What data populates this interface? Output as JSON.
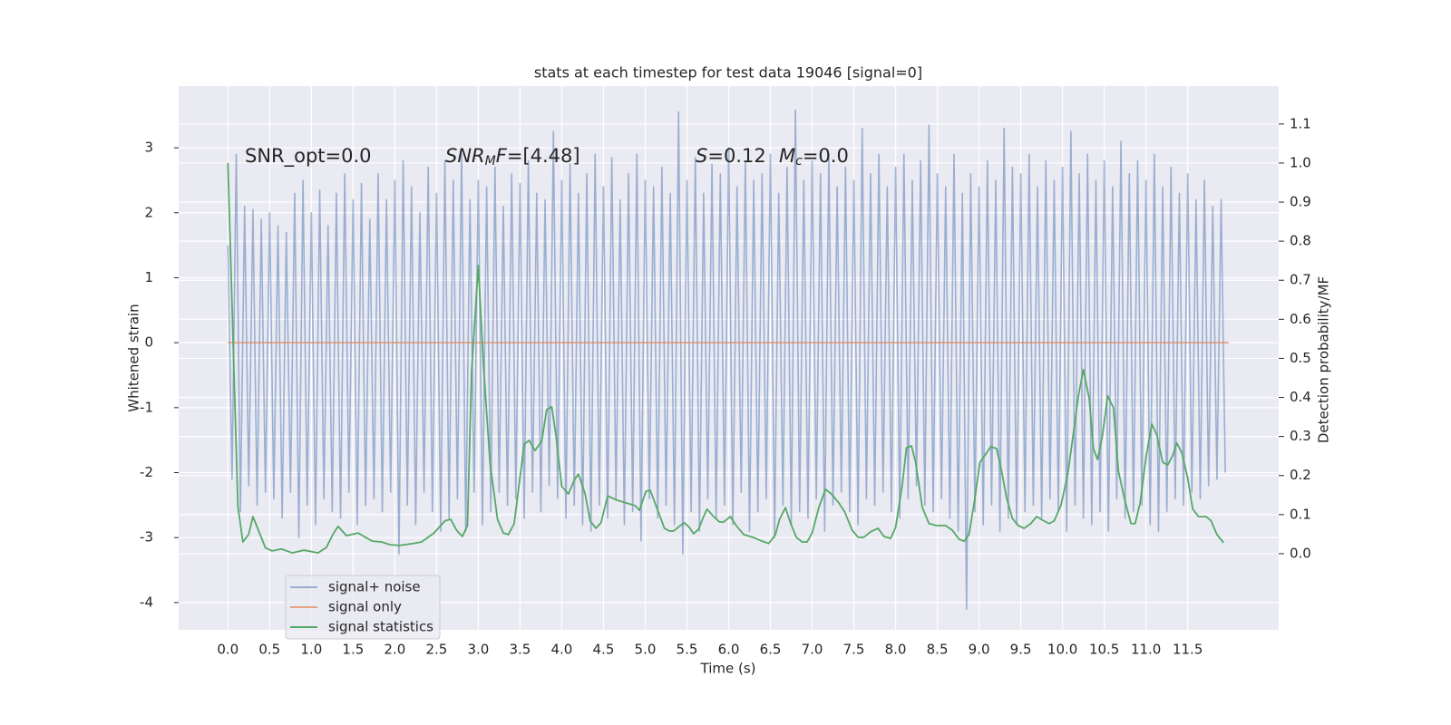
{
  "chart_data": {
    "type": "line",
    "title": "stats at each timestep for test data 19046 [signal=0]",
    "xlabel": "Time (s)",
    "ylabel": "Whitened strain",
    "y2label": "Detection probability/MF",
    "xlim": [
      -0.59,
      12.59
    ],
    "ylim": [
      -4.42,
      3.95
    ],
    "y2lim": [
      -0.195,
      1.197
    ],
    "xticks": [
      {
        "value": 0,
        "label": "0.0"
      },
      0.5,
      {
        "value": 1,
        "label": "1.0"
      },
      1.5,
      {
        "value": 2,
        "label": "2.0"
      },
      2.5,
      {
        "value": 3,
        "label": "3.0"
      },
      3.5,
      {
        "value": 4,
        "label": "4.0"
      },
      4.5,
      {
        "value": 5,
        "label": "5.0"
      },
      5.5,
      {
        "value": 6,
        "label": "6.0"
      },
      6.5,
      {
        "value": 7,
        "label": "7.0"
      },
      7.5,
      {
        "value": 8,
        "label": "8.0"
      },
      8.5,
      {
        "value": 9,
        "label": "9.0"
      },
      9.5,
      {
        "value": 10,
        "label": "10.0"
      },
      10.5,
      {
        "value": 11,
        "label": "11.0"
      },
      11.5
    ],
    "yticks": [
      -4,
      -3,
      -2,
      -1,
      0,
      1,
      2,
      3
    ],
    "y2ticks": [
      {
        "value": 0,
        "label": "0.0"
      },
      0.1,
      0.2,
      0.3,
      0.4,
      0.5,
      0.6,
      0.7,
      0.8,
      0.9,
      {
        "value": 1,
        "label": "1.0"
      },
      1.1
    ],
    "grid": true,
    "annotations": [
      [
        {
          "text": "SNR_opt=0.0"
        }
      ],
      [
        {
          "text": "SNR",
          "italic": true
        },
        {
          "text": "M",
          "italic": true,
          "sub": true
        },
        {
          "text": "F",
          "italic": true
        },
        {
          "text": "=[4.48]"
        }
      ],
      [
        {
          "text": "S",
          "italic": true
        },
        {
          "text": "=0.12"
        }
      ],
      [
        {
          "text": "M",
          "italic": true
        },
        {
          "text": "c",
          "italic": true,
          "sub": true
        },
        {
          "text": "=0.0"
        }
      ]
    ],
    "series": [
      {
        "name": "signal+ noise",
        "color": "#4c72b0",
        "opacity": 0.5,
        "x": [
          0,
          0.05,
          0.1,
          0.15,
          0.2,
          0.25,
          0.3,
          0.35,
          0.4,
          0.45,
          0.5,
          0.55,
          0.6,
          0.65,
          0.7,
          0.75,
          0.8,
          0.85,
          0.9,
          0.95,
          1,
          1.05,
          1.1,
          1.15,
          1.2,
          1.25,
          1.3,
          1.35,
          1.4,
          1.45,
          1.5,
          1.55,
          1.6,
          1.65,
          1.7,
          1.75,
          1.8,
          1.85,
          1.9,
          1.95,
          2,
          2.05,
          2.1,
          2.15,
          2.2,
          2.25,
          2.3,
          2.35,
          2.4,
          2.45,
          2.5,
          2.55,
          2.6,
          2.65,
          2.7,
          2.75,
          2.8,
          2.85,
          2.9,
          2.95,
          3,
          3.05,
          3.1,
          3.15,
          3.2,
          3.25,
          3.3,
          3.35,
          3.4,
          3.45,
          3.5,
          3.55,
          3.6,
          3.65,
          3.7,
          3.75,
          3.8,
          3.85,
          3.9,
          3.95,
          4,
          4.05,
          4.1,
          4.15,
          4.2,
          4.25,
          4.3,
          4.35,
          4.4,
          4.45,
          4.5,
          4.55,
          4.6,
          4.65,
          4.7,
          4.75,
          4.8,
          4.85,
          4.9,
          4.95,
          5,
          5.05,
          5.1,
          5.15,
          5.2,
          5.25,
          5.3,
          5.35,
          5.4,
          5.45,
          5.5,
          5.55,
          5.6,
          5.65,
          5.7,
          5.75,
          5.8,
          5.85,
          5.9,
          5.95,
          6,
          6.05,
          6.1,
          6.15,
          6.2,
          6.25,
          6.3,
          6.35,
          6.4,
          6.45,
          6.5,
          6.55,
          6.6,
          6.65,
          6.7,
          6.75,
          6.8,
          6.85,
          6.9,
          6.95,
          7,
          7.05,
          7.1,
          7.15,
          7.2,
          7.25,
          7.3,
          7.35,
          7.4,
          7.45,
          7.5,
          7.55,
          7.6,
          7.65,
          7.7,
          7.75,
          7.8,
          7.85,
          7.9,
          7.95,
          8,
          8.05,
          8.1,
          8.15,
          8.2,
          8.25,
          8.3,
          8.35,
          8.4,
          8.45,
          8.5,
          8.55,
          8.6,
          8.65,
          8.7,
          8.75,
          8.8,
          8.85,
          8.9,
          8.95,
          9,
          9.05,
          9.1,
          9.15,
          9.2,
          9.25,
          9.3,
          9.35,
          9.4,
          9.45,
          9.5,
          9.55,
          9.6,
          9.65,
          9.7,
          9.75,
          9.8,
          9.85,
          9.9,
          9.95,
          10,
          10.05,
          10.1,
          10.15,
          10.2,
          10.25,
          10.3,
          10.35,
          10.4,
          10.45,
          10.5,
          10.55,
          10.6,
          10.65,
          10.7,
          10.75,
          10.8,
          10.85,
          10.9,
          10.95,
          11,
          11.05,
          11.1,
          11.15,
          11.2,
          11.25,
          11.3,
          11.35,
          11.4,
          11.45,
          11.5,
          11.55,
          11.6,
          11.65,
          11.7,
          11.75,
          11.8,
          11.85,
          11.9,
          11.95
        ],
        "values": [
          1.5,
          -2.1,
          2.9,
          -2.6,
          2.1,
          -2.2,
          2.05,
          -2.5,
          1.9,
          -2.3,
          2.0,
          -2.4,
          1.8,
          -2.7,
          1.7,
          -2.3,
          2.3,
          -3.0,
          2.5,
          -2.5,
          2.0,
          -2.8,
          2.35,
          -2.4,
          1.8,
          -2.6,
          2.3,
          -2.7,
          2.6,
          -2.3,
          2.2,
          -2.8,
          2.45,
          -2.5,
          1.9,
          -2.4,
          2.6,
          -2.6,
          2.2,
          -2.3,
          2.5,
          -3.25,
          2.8,
          -2.5,
          2.4,
          -2.8,
          2.0,
          -2.3,
          2.7,
          -2.6,
          2.3,
          -2.9,
          2.8,
          -2.7,
          2.5,
          -2.4,
          2.9,
          -2.9,
          2.2,
          -2.3,
          2.5,
          -2.8,
          2.4,
          -2.6,
          2.7,
          -2.3,
          2.1,
          -2.5,
          2.6,
          -2.4,
          2.45,
          -2.7,
          2.8,
          -2.3,
          2.3,
          -2.6,
          2.2,
          -2.2,
          3.25,
          -2.4,
          2.5,
          -2.7,
          2.75,
          -2.5,
          2.3,
          -2.8,
          2.6,
          -2.9,
          2.9,
          -2.5,
          2.4,
          -2.7,
          2.85,
          -2.4,
          2.2,
          -2.8,
          2.6,
          -2.6,
          2.9,
          -3.05,
          2.5,
          -2.4,
          2.4,
          -2.7,
          2.7,
          -2.5,
          2.3,
          -2.8,
          3.55,
          -3.25,
          2.5,
          -2.6,
          2.85,
          -2.9,
          2.3,
          -2.4,
          2.75,
          -2.7,
          2.6,
          -2.5,
          3.0,
          -2.8,
          2.4,
          -2.3,
          2.8,
          -2.9,
          2.5,
          -2.6,
          2.6,
          -2.4,
          2.9,
          -3.0,
          2.3,
          -2.5,
          2.7,
          -2.8,
          3.58,
          -2.6,
          2.5,
          -2.7,
          2.8,
          -2.4,
          2.6,
          -2.9,
          2.9,
          -2.5,
          2.4,
          -2.3,
          2.7,
          -2.6,
          2.5,
          -2.8,
          3.3,
          -2.4,
          2.6,
          -2.5,
          2.9,
          -2.3,
          2.4,
          -2.6,
          2.7,
          -2.7,
          2.9,
          -2.4,
          2.5,
          -2.2,
          2.8,
          -2.5,
          3.35,
          -2.6,
          2.6,
          -2.4,
          2.4,
          -2.7,
          2.9,
          -2.9,
          2.3,
          -4.1,
          2.6,
          -2.6,
          2.4,
          -2.8,
          2.8,
          -2.5,
          2.5,
          -2.9,
          3.3,
          -2.7,
          2.7,
          -2.8,
          2.6,
          -2.6,
          2.9,
          -2.5,
          2.4,
          -2.7,
          2.8,
          -2.4,
          2.5,
          -2.6,
          2.7,
          -2.9,
          3.25,
          -2.5,
          2.6,
          -2.7,
          2.9,
          -2.8,
          2.5,
          -2.6,
          2.8,
          -2.9,
          2.4,
          -2.4,
          3.1,
          -2.7,
          2.6,
          -2.6,
          2.8,
          -2.5,
          2.5,
          -2.8,
          2.9,
          -2.9,
          2.4,
          -2.6,
          2.7,
          -2.4,
          2.3,
          -2.5,
          2.6,
          -2.3,
          2.2,
          -2.4,
          2.5,
          -2.2,
          2.1,
          -2.1,
          2.2,
          -2.0
        ]
      },
      {
        "name": "signal only",
        "color": "#dd8452",
        "opacity": 0.7,
        "x": [
          0,
          11.99
        ],
        "values": [
          0,
          0
        ]
      },
      {
        "name": "signal statistics",
        "color": "#55a868",
        "opacity": 1,
        "axis": "y2",
        "x": [
          0,
          0.12,
          0.18,
          0.25,
          0.3,
          0.45,
          0.53,
          0.64,
          0.77,
          0.91,
          1.08,
          1.18,
          1.26,
          1.32,
          1.42,
          1.56,
          1.73,
          1.84,
          1.94,
          2.05,
          2.22,
          2.32,
          2.47,
          2.6,
          2.67,
          2.74,
          2.81,
          2.87,
          2.92,
          3.0,
          3.06,
          3.14,
          3.23,
          3.3,
          3.36,
          3.43,
          3.55,
          3.61,
          3.68,
          3.76,
          3.82,
          3.88,
          3.93,
          4.0,
          4.08,
          4.15,
          4.2,
          4.28,
          4.34,
          4.41,
          4.47,
          4.55,
          4.66,
          4.77,
          4.88,
          4.93,
          5.01,
          5.06,
          5.15,
          5.23,
          5.29,
          5.34,
          5.42,
          5.47,
          5.53,
          5.58,
          5.64,
          5.69,
          5.74,
          5.82,
          5.89,
          5.94,
          6.02,
          6.09,
          6.18,
          6.29,
          6.4,
          6.48,
          6.56,
          6.61,
          6.68,
          6.74,
          6.81,
          6.88,
          6.94,
          7.0,
          7.08,
          7.16,
          7.23,
          7.32,
          7.39,
          7.48,
          7.55,
          7.62,
          7.7,
          7.79,
          7.86,
          7.94,
          8.0,
          8.08,
          8.13,
          8.19,
          8.24,
          8.32,
          8.4,
          8.49,
          8.6,
          8.68,
          8.76,
          8.82,
          8.88,
          8.95,
          9.01,
          9.09,
          9.14,
          9.21,
          9.26,
          9.33,
          9.4,
          9.47,
          9.54,
          9.62,
          9.69,
          9.76,
          9.84,
          9.9,
          9.98,
          10.06,
          10.12,
          10.19,
          10.25,
          10.32,
          10.37,
          10.42,
          10.48,
          10.54,
          10.61,
          10.67,
          10.74,
          10.82,
          10.87,
          10.93,
          11.0,
          11.07,
          11.13,
          11.2,
          11.26,
          11.32,
          11.37,
          11.43,
          11.5,
          11.56,
          11.63,
          11.72,
          11.78,
          11.85,
          11.93
        ],
        "values": [
          1.0,
          0.12,
          0.03,
          0.05,
          0.095,
          0.015,
          0.007,
          0.012,
          0.002,
          0.009,
          0.002,
          0.016,
          0.05,
          0.07,
          0.046,
          0.053,
          0.032,
          0.03,
          0.023,
          0.021,
          0.026,
          0.03,
          0.053,
          0.084,
          0.088,
          0.06,
          0.044,
          0.072,
          0.466,
          0.738,
          0.49,
          0.234,
          0.088,
          0.053,
          0.049,
          0.077,
          0.28,
          0.29,
          0.264,
          0.288,
          0.369,
          0.376,
          0.304,
          0.172,
          0.153,
          0.188,
          0.204,
          0.153,
          0.084,
          0.065,
          0.079,
          0.148,
          0.137,
          0.13,
          0.123,
          0.111,
          0.16,
          0.162,
          0.111,
          0.065,
          0.058,
          0.058,
          0.072,
          0.079,
          0.067,
          0.051,
          0.063,
          0.09,
          0.114,
          0.095,
          0.081,
          0.081,
          0.095,
          0.072,
          0.049,
          0.042,
          0.032,
          0.026,
          0.049,
          0.088,
          0.118,
          0.079,
          0.042,
          0.03,
          0.03,
          0.053,
          0.118,
          0.165,
          0.153,
          0.13,
          0.107,
          0.06,
          0.042,
          0.042,
          0.056,
          0.065,
          0.044,
          0.039,
          0.067,
          0.176,
          0.271,
          0.276,
          0.234,
          0.118,
          0.077,
          0.072,
          0.072,
          0.06,
          0.037,
          0.032,
          0.049,
          0.142,
          0.234,
          0.258,
          0.274,
          0.269,
          0.223,
          0.142,
          0.09,
          0.072,
          0.065,
          0.077,
          0.095,
          0.086,
          0.077,
          0.084,
          0.123,
          0.2,
          0.292,
          0.404,
          0.471,
          0.397,
          0.269,
          0.241,
          0.304,
          0.404,
          0.374,
          0.211,
          0.142,
          0.077,
          0.077,
          0.13,
          0.246,
          0.332,
          0.304,
          0.234,
          0.227,
          0.251,
          0.283,
          0.258,
          0.193,
          0.114,
          0.095,
          0.095,
          0.084,
          0.049,
          0.028
        ]
      }
    ]
  }
}
